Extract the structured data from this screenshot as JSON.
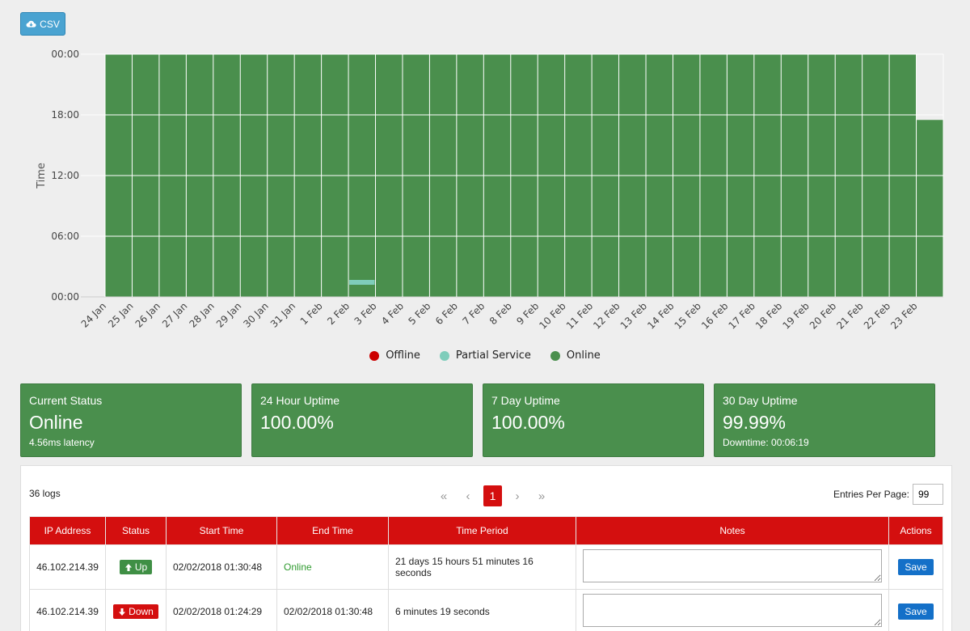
{
  "toolbar": {
    "csv_label": "CSV"
  },
  "chart_data": {
    "type": "heatmap",
    "ylabel": "Time",
    "y_ticks": [
      "00:00",
      "06:00",
      "12:00",
      "18:00",
      "00:00"
    ],
    "categories": [
      "24 Jan",
      "25 Jan",
      "26 Jan",
      "27 Jan",
      "28 Jan",
      "29 Jan",
      "30 Jan",
      "31 Jan",
      "1 Feb",
      "2 Feb",
      "3 Feb",
      "4 Feb",
      "5 Feb",
      "6 Feb",
      "7 Feb",
      "8 Feb",
      "9 Feb",
      "10 Feb",
      "11 Feb",
      "12 Feb",
      "13 Feb",
      "14 Feb",
      "15 Feb",
      "16 Feb",
      "17 Feb",
      "18 Feb",
      "19 Feb",
      "20 Feb",
      "21 Feb",
      "22 Feb",
      "23 Feb"
    ],
    "series": [
      {
        "name": "Offline",
        "color": "#cc0000",
        "segments": []
      },
      {
        "name": "Partial Service",
        "color": "#7fcdbb",
        "segments": [
          {
            "day": "2 Feb",
            "start_hour": 1.4,
            "end_hour": 1.6
          }
        ]
      },
      {
        "name": "Online",
        "color": "#4a8f4d",
        "segments": "all other time; 23 Feb online 00:00–17:30"
      }
    ],
    "last_day_end_hour": 17.5,
    "legend_position": "bottom",
    "grid": true
  },
  "cards": [
    {
      "title": "Current Status",
      "value": "Online",
      "sub": "4.56ms latency"
    },
    {
      "title": "24 Hour Uptime",
      "value": "100.00%",
      "sub": ""
    },
    {
      "title": "7 Day Uptime",
      "value": "100.00%",
      "sub": ""
    },
    {
      "title": "30 Day Uptime",
      "value": "99.99%",
      "sub": "Downtime: 00:06:19"
    }
  ],
  "logs": {
    "count_label": "36 logs",
    "current_page": "1",
    "per_page_label": "Entries Per Page:",
    "per_page_value": "99",
    "columns": [
      "IP Address",
      "Status",
      "Start Time",
      "End Time",
      "Time Period",
      "Notes",
      "Actions"
    ],
    "rows": [
      {
        "ip": "46.102.214.39",
        "status": "Up",
        "start": "02/02/2018 01:30:48",
        "end": "Online",
        "period": "21 days 15 hours 51 minutes 16 seconds",
        "action": "Save"
      },
      {
        "ip": "46.102.214.39",
        "status": "Down",
        "start": "02/02/2018 01:24:29",
        "end": "02/02/2018 01:30:48",
        "period": "6 minutes 19 seconds",
        "action": "Save"
      }
    ]
  }
}
